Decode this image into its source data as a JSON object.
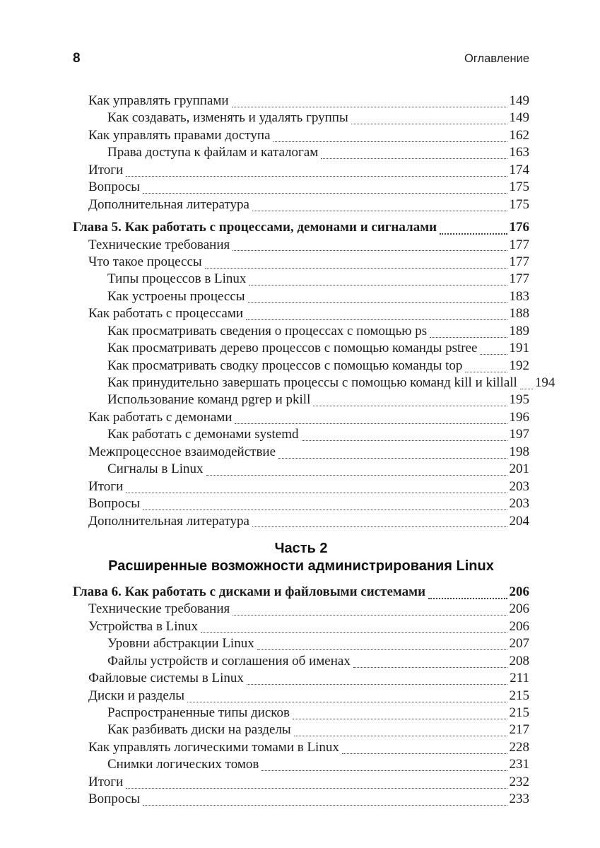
{
  "page": {
    "number": "8",
    "header_title": "Оглавление"
  },
  "colors": {
    "text": "#1b1b1b",
    "leader": "#3e3e3e",
    "background": "#ffffff"
  },
  "toc": {
    "items": [
      {
        "type": "l1",
        "label": "Как управлять группами",
        "page": "149"
      },
      {
        "type": "l2",
        "label": "Как создавать, изменять и удалять группы",
        "page": "149"
      },
      {
        "type": "l1",
        "label": "Как управлять правами доступа ",
        "page": "162"
      },
      {
        "type": "l2",
        "label": "Права доступа к файлам и каталогам",
        "page": "163"
      },
      {
        "type": "l1",
        "label": "Итоги ",
        "page": "174"
      },
      {
        "type": "l1",
        "label": "Вопросы",
        "page": "175"
      },
      {
        "type": "l1",
        "label": "Дополнительная литература ",
        "page": "175"
      },
      {
        "type": "chapter",
        "label": "Глава 5. Как работать с процессами, демонами и сигналами",
        "page": "176"
      },
      {
        "type": "l1",
        "label": "Технические требования",
        "page": "177"
      },
      {
        "type": "l1",
        "label": "Что такое процессы ",
        "page": "177"
      },
      {
        "type": "l2",
        "label": "Типы процессов в Linux",
        "page": "177"
      },
      {
        "type": "l2",
        "label": "Как устроены процессы",
        "page": "183"
      },
      {
        "type": "l1",
        "label": "Как работать с процессами ",
        "page": "188"
      },
      {
        "type": "l2",
        "label": "Как просматривать сведения о процессах с помощью ps",
        "page": "189"
      },
      {
        "type": "l2",
        "label": "Как просматривать дерево процессов с помощью команды pstree",
        "page": "191"
      },
      {
        "type": "l2",
        "label": "Как просматривать сводку процессов с помощью команды top",
        "page": "192"
      },
      {
        "type": "l2",
        "label": "Как принудительно завершать процессы с помощью команд kill и killall",
        "page": "194"
      },
      {
        "type": "l2",
        "label": "Использование команд pgrep и pkill",
        "page": "195"
      },
      {
        "type": "l1",
        "label": "Как работать с демонами ",
        "page": "196"
      },
      {
        "type": "l2",
        "label": "Как работать с демонами systemd",
        "page": "197"
      },
      {
        "type": "l1",
        "label": "Межпроцессное взаимодействие",
        "page": "198"
      },
      {
        "type": "l2",
        "label": "Сигналы в Linux ",
        "page": "201"
      },
      {
        "type": "l1",
        "label": "Итоги ",
        "page": "203"
      },
      {
        "type": "l1",
        "label": "Вопросы",
        "page": "203"
      },
      {
        "type": "l1",
        "label": "Дополнительная литература ",
        "page": "204"
      },
      {
        "type": "part",
        "lines": [
          "Часть 2",
          "Расширенные возможности администрирования Linux"
        ]
      },
      {
        "type": "chapter",
        "label": "Глава 6. Как работать с дисками и файловыми системами",
        "page": "206"
      },
      {
        "type": "l1",
        "label": "Технические требования",
        "page": "206"
      },
      {
        "type": "l1",
        "label": "Устройства в Linux",
        "page": "206"
      },
      {
        "type": "l2",
        "label": "Уровни абстракции Linux",
        "page": "207"
      },
      {
        "type": "l2",
        "label": "Файлы устройств и соглашения об именах ",
        "page": "208"
      },
      {
        "type": "l1",
        "label": "Файловые системы в Linux",
        "page": "211"
      },
      {
        "type": "l1",
        "label": "Диски и разделы ",
        "page": "215"
      },
      {
        "type": "l2",
        "label": "Распространенные типы дисков ",
        "page": "215"
      },
      {
        "type": "l2",
        "label": "Как разбивать диски на разделы",
        "page": "217"
      },
      {
        "type": "l1",
        "label": "Как управлять логическими томами в Linux ",
        "page": "228"
      },
      {
        "type": "l2",
        "label": "Снимки логических томов ",
        "page": "231"
      },
      {
        "type": "l1",
        "label": "Итоги ",
        "page": "232"
      },
      {
        "type": "l1",
        "label": "Вопросы ",
        "page": "233"
      }
    ]
  }
}
